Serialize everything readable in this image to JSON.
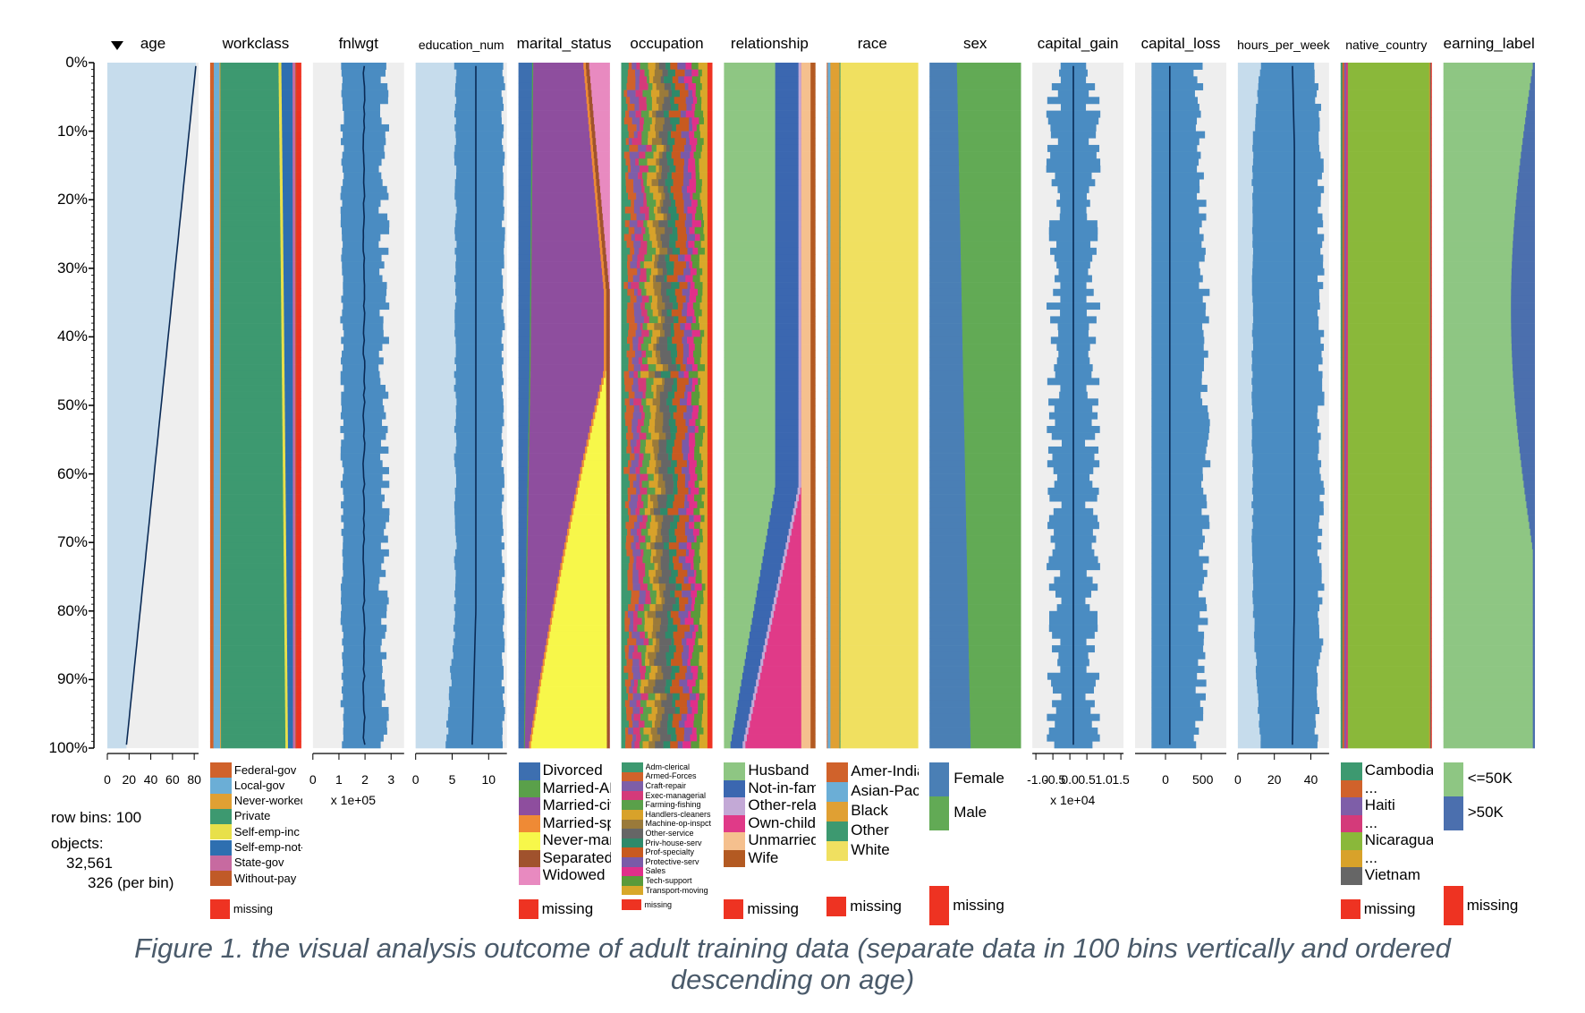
{
  "caption": [
    "Figure 1. the visual analysis outcome of adult training data (separate data in 100 bins vertically and ordered",
    "descending on age)"
  ],
  "info": {
    "row_bins_label": "row bins:",
    "row_bins_value": "100",
    "objects_label": "objects:",
    "objects_value": "32,561",
    "per_bin": "326 (per bin)"
  },
  "colors": {
    "bar_blue": "#4a8cc2",
    "bg_light": "#c6dcec",
    "bg_gray": "#eeeeee",
    "line_dark": "#0a2a55",
    "missing": "#ee3322"
  },
  "chart_data": {
    "type": "table",
    "title": "",
    "row_bins": 100,
    "sort_column": "age",
    "sort_order": "descending",
    "y_axis_ticks": [
      "0%",
      "10%",
      "20%",
      "30%",
      "40%",
      "50%",
      "60%",
      "70%",
      "80%",
      "90%",
      "100%"
    ],
    "columns": [
      {
        "name": "age",
        "kind": "numeric",
        "ticks": [
          "0",
          "20",
          "40",
          "60",
          "80"
        ],
        "range": [
          0,
          90
        ],
        "median_top": 87,
        "median_bottom": 19
      },
      {
        "name": "workclass",
        "kind": "categorical",
        "categories": [
          {
            "label": "Federal-gov",
            "color": "#d0622b"
          },
          {
            "label": "Local-gov",
            "color": "#6baed6"
          },
          {
            "label": "Never-worked",
            "color": "#e0a033"
          },
          {
            "label": "Private",
            "color": "#3d9970"
          },
          {
            "label": "Self-emp-inc",
            "color": "#e8e04a"
          },
          {
            "label": "Self-emp-not-inc",
            "color": "#2e6fb0"
          },
          {
            "label": "State-gov",
            "color": "#c76aa0"
          },
          {
            "label": "Without-pay",
            "color": "#c05a28"
          }
        ],
        "missing_label": "missing"
      },
      {
        "name": "fnlwgt",
        "kind": "numeric",
        "ticks": [
          "0",
          "1",
          "2",
          "3"
        ],
        "unit": "x 1e+05"
      },
      {
        "name": "education_num",
        "kind": "numeric",
        "ticks": [
          "0",
          "5",
          "10"
        ]
      },
      {
        "name": "marital_status",
        "kind": "categorical",
        "categories": [
          {
            "label": "Divorced",
            "color": "#3d6fb0"
          },
          {
            "label": "Married-AF-spouse",
            "color": "#5aa04a"
          },
          {
            "label": "Married-civ-spouse",
            "color": "#8e4e9e"
          },
          {
            "label": "Married-spouse-absent",
            "color": "#ef8a35"
          },
          {
            "label": "Never-married",
            "color": "#f7f74a"
          },
          {
            "label": "Separated",
            "color": "#a0522d"
          },
          {
            "label": "Widowed",
            "color": "#e88ac0"
          }
        ],
        "missing_label": "missing"
      },
      {
        "name": "occupation",
        "kind": "categorical",
        "categories": [
          {
            "label": "Adm-clerical",
            "color": "#3d9970"
          },
          {
            "label": "Armed-Forces",
            "color": "#d0622b"
          },
          {
            "label": "Craft-repair",
            "color": "#7e5ea8"
          },
          {
            "label": "Exec-managerial",
            "color": "#d43a7a"
          },
          {
            "label": "Farming-fishing",
            "color": "#5aa04a"
          },
          {
            "label": "Handlers-cleaners",
            "color": "#d8a22a"
          },
          {
            "label": "Machine-op-inspct",
            "color": "#9a7a3a"
          },
          {
            "label": "Other-service",
            "color": "#666666"
          },
          {
            "label": "Priv-house-serv",
            "color": "#2e8a6a"
          },
          {
            "label": "Prof-specialty",
            "color": "#c85a20"
          },
          {
            "label": "Protective-serv",
            "color": "#7a5aa8"
          },
          {
            "label": "Sales",
            "color": "#e0308a"
          },
          {
            "label": "Tech-support",
            "color": "#5a9a3a"
          },
          {
            "label": "Transport-moving",
            "color": "#d8a82a"
          }
        ],
        "missing_label": "missing"
      },
      {
        "name": "relationship",
        "kind": "categorical",
        "categories": [
          {
            "label": "Husband",
            "color": "#8ec683"
          },
          {
            "label": "Not-in-family",
            "color": "#3b67b0"
          },
          {
            "label": "Other-relative",
            "color": "#c3a9d6"
          },
          {
            "label": "Own-child",
            "color": "#e03a88"
          },
          {
            "label": "Unmarried",
            "color": "#f5c08e"
          },
          {
            "label": "Wife",
            "color": "#b35a22"
          }
        ],
        "missing_label": "missing"
      },
      {
        "name": "race",
        "kind": "categorical",
        "categories": [
          {
            "label": "Amer-Indian-Eskimo",
            "color": "#d0622b"
          },
          {
            "label": "Asian-Pac-Islander",
            "color": "#6baed6"
          },
          {
            "label": "Black",
            "color": "#e0a033"
          },
          {
            "label": "Other",
            "color": "#3d9970"
          },
          {
            "label": "White",
            "color": "#f0e060"
          }
        ],
        "missing_label": "missing"
      },
      {
        "name": "sex",
        "kind": "categorical",
        "categories": [
          {
            "label": "Female",
            "color": "#4a7fb5"
          },
          {
            "label": "Male",
            "color": "#62aa55"
          }
        ],
        "missing_label": "missing"
      },
      {
        "name": "capital_gain",
        "kind": "numeric",
        "ticks": [
          "-1.0",
          "-0.5",
          "0.0",
          "0.5",
          "1.0",
          "1.5"
        ],
        "unit": "x 1e+04"
      },
      {
        "name": "capital_loss",
        "kind": "numeric",
        "ticks": [
          "0",
          "500"
        ]
      },
      {
        "name": "hours_per_week",
        "kind": "numeric",
        "ticks": [
          "0",
          "20",
          "40"
        ]
      },
      {
        "name": "native_country",
        "kind": "categorical",
        "categories": [
          {
            "label": "Cambodia",
            "color": "#3d9970"
          },
          {
            "label": "...",
            "color": "#d0622b"
          },
          {
            "label": "Haiti",
            "color": "#7e5ea8"
          },
          {
            "label": "...",
            "color": "#d43a7a"
          },
          {
            "label": "Nicaragua",
            "color": "#8ab83a"
          },
          {
            "label": "...",
            "color": "#d8a22a"
          },
          {
            "label": "Vietnam",
            "color": "#666666"
          }
        ],
        "missing_label": "missing"
      },
      {
        "name": "earning_label",
        "kind": "categorical",
        "categories": [
          {
            "label": "<=50K",
            "color": "#8ec683"
          },
          {
            "label": ">50K",
            "color": "#4b6fae"
          }
        ],
        "missing_label": "missing"
      }
    ]
  }
}
